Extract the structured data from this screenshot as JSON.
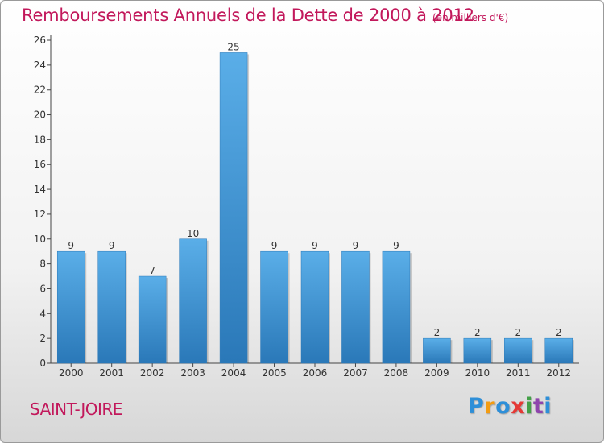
{
  "header": {
    "title": "Remboursements Annuels de la Dette de 2000 à 2012",
    "unit": "(en milliers d'€)"
  },
  "footer": {
    "commune": "SAINT-JOIRE",
    "logo": {
      "letters": [
        "P",
        "r",
        "o",
        "x",
        "i",
        "t",
        "i"
      ],
      "colors": [
        "#2e8fd8",
        "#f39c12",
        "#2e8fd8",
        "#e53935",
        "#43a047",
        "#8e44ad",
        "#2e8fd8"
      ]
    }
  },
  "chart_data": {
    "type": "bar",
    "title": "Remboursements Annuels de la Dette de 2000 à 2012",
    "xlabel": "",
    "ylabel": "",
    "categories": [
      "2000",
      "2001",
      "2002",
      "2003",
      "2004",
      "2005",
      "2006",
      "2007",
      "2008",
      "2009",
      "2010",
      "2011",
      "2012"
    ],
    "values": [
      9,
      9,
      7,
      10,
      25,
      9,
      9,
      9,
      9,
      2,
      2,
      2,
      2
    ],
    "ylim": [
      0,
      26
    ],
    "yticks": [
      0,
      2,
      4,
      6,
      8,
      10,
      12,
      14,
      16,
      18,
      20,
      22,
      24,
      26
    ],
    "grid": false,
    "bar_color": "#3a8fd0"
  }
}
